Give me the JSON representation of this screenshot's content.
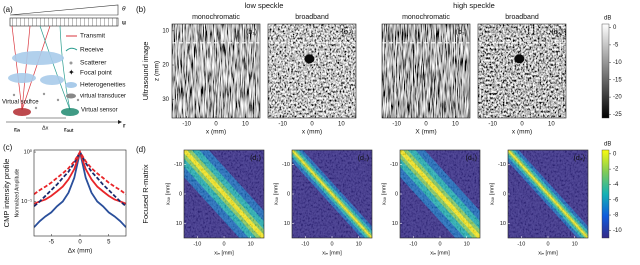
{
  "panel_a": {
    "label": "(a)",
    "theta": "θ",
    "u": "u",
    "legend": [
      "Transmit",
      "Receive",
      "Scatterer",
      "Focal point",
      "Heterogeneities",
      "virtual transducer"
    ],
    "virtual_source": "Virtual source",
    "virtual_sensor": "Virtual sensor",
    "r_in": "rᵢₙ",
    "delta_x": "Δx",
    "r_out": "rₒᵤₜ",
    "r": "r"
  },
  "panel_b": {
    "label": "(b)",
    "title": "Ultrasound image",
    "groups": [
      "low speckle",
      "high speckle"
    ],
    "columns": [
      "monochromatic",
      "broadband",
      "monochromatic",
      "broadband"
    ],
    "subpanels": [
      "(b₁)",
      "(b₂)",
      "(b₃)",
      "(b₄)"
    ],
    "xlabels": [
      "x (mm)",
      "x (mm)",
      "X (mm)",
      "x (mm)"
    ],
    "ylabel": "z (mm)",
    "xlim": [
      -15,
      15
    ],
    "xticks": [
      -10,
      0,
      10
    ],
    "zlim": [
      8,
      35.5
    ],
    "zticks": [
      10,
      20,
      30
    ],
    "colorbar": {
      "label": "dB",
      "lim": [
        -26,
        1
      ],
      "ticks": [
        0,
        -5,
        -10,
        -15,
        -20,
        -25
      ]
    }
  },
  "chart_data": {
    "type": "line",
    "label": "(c)",
    "title": "CMP intensity profile",
    "ylabel": "Normalized Amplitude",
    "xlabel": "Δx (mm)",
    "x": [
      -8,
      -7,
      -6,
      -5,
      -4,
      -3,
      -2,
      -1,
      0,
      1,
      2,
      3,
      4,
      5,
      6,
      7,
      8
    ],
    "xlim": [
      -8,
      8
    ],
    "xticks": [
      -5,
      0,
      5
    ],
    "ylim": [
      0.02,
      1.1
    ],
    "yticks": [
      {
        "value": 1,
        "label": "10⁰"
      },
      {
        "value": 0.1,
        "label": "10⁻¹"
      }
    ],
    "log_y": true,
    "series": [
      {
        "color": "#2a4f9b",
        "dashed": false,
        "values": [
          0.03,
          0.04,
          0.05,
          0.06,
          0.08,
          0.1,
          0.15,
          0.3,
          1,
          0.3,
          0.15,
          0.1,
          0.08,
          0.06,
          0.05,
          0.04,
          0.03
        ]
      },
      {
        "color": "#e8262a",
        "dashed": false,
        "values": [
          0.09,
          0.1,
          0.11,
          0.13,
          0.16,
          0.2,
          0.28,
          0.45,
          1,
          0.45,
          0.28,
          0.2,
          0.16,
          0.13,
          0.11,
          0.1,
          0.09
        ]
      },
      {
        "color": "#1a2a6c",
        "dashed": true,
        "values": [
          0.08,
          0.1,
          0.13,
          0.17,
          0.22,
          0.3,
          0.4,
          0.6,
          1,
          0.6,
          0.4,
          0.3,
          0.22,
          0.17,
          0.13,
          0.1,
          0.08
        ]
      },
      {
        "color": "#e8262a",
        "dashed": true,
        "values": [
          0.14,
          0.17,
          0.2,
          0.24,
          0.3,
          0.37,
          0.47,
          0.65,
          1,
          0.65,
          0.47,
          0.37,
          0.3,
          0.24,
          0.2,
          0.17,
          0.14
        ]
      }
    ]
  },
  "panel_d": {
    "label": "(d)",
    "title": "Focused R-matrix",
    "subpanels": [
      "(d₁)",
      "(d₂)",
      "(d₃)",
      "(d₄)"
    ],
    "xlabel": "xᵢₙ [mm]",
    "ylabel": "xₒᵤₜ [mm]",
    "xlim": [
      -15,
      15
    ],
    "xticks": [
      -10,
      0,
      10
    ],
    "ylim": [
      -15,
      15
    ],
    "yticks": [
      -10,
      0,
      10
    ],
    "colorbar": {
      "label": "dB",
      "lim": [
        -11,
        0.5
      ],
      "ticks": [
        0,
        -2,
        -4,
        -6,
        -8,
        -10
      ]
    }
  }
}
